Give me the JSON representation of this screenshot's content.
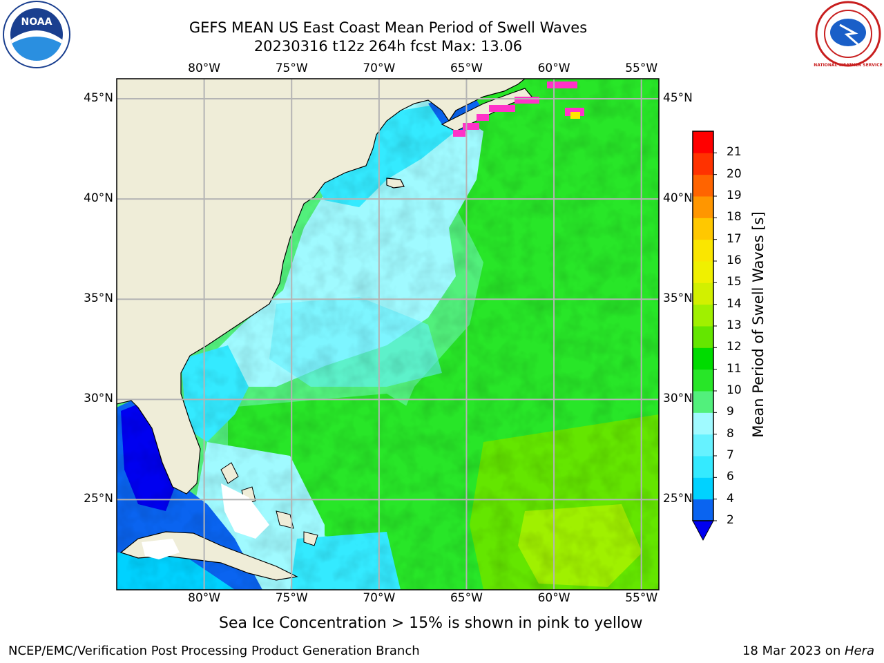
{
  "title": {
    "line1": "GEFS MEAN US East Coast Mean Period of Swell Waves",
    "line2": "20230316 t12z 264h fcst   Max: 13.06"
  },
  "map": {
    "lon_ticks": [
      "80°W",
      "75°W",
      "70°W",
      "65°W",
      "60°W",
      "55°W"
    ],
    "lat_ticks": [
      "45°N",
      "40°N",
      "35°N",
      "30°N",
      "25°N"
    ],
    "lon_values": [
      -80,
      -75,
      -70,
      -65,
      -60,
      -55
    ],
    "lat_values": [
      45,
      40,
      35,
      30,
      25
    ],
    "lon_range": [
      -85,
      -54
    ],
    "lat_range": [
      20.5,
      46
    ]
  },
  "colorbar": {
    "label": "Mean Period of Swell Waves [s]",
    "ticks": [
      "2",
      "4",
      "6",
      "7",
      "8",
      "9",
      "10",
      "11",
      "12",
      "13",
      "14",
      "15",
      "16",
      "17",
      "18",
      "19",
      "20",
      "21"
    ],
    "colors": [
      "#0a64f0",
      "#00d2ff",
      "#34eaff",
      "#66f2ff",
      "#a0faff",
      "#52f07c",
      "#28e628",
      "#00dc00",
      "#64e600",
      "#a0f000",
      "#d2f000",
      "#f0f000",
      "#fae600",
      "#ffc800",
      "#ff9600",
      "#ff6400",
      "#ff3200",
      "#ff0000"
    ],
    "under_color": "#0000f0"
  },
  "colors": {
    "land": "#efedd8",
    "coast": "#000000",
    "grid": "#b4b4b4",
    "ice_pink": "#ff32c8",
    "ice_yellow": "#ffe600"
  },
  "caption": "Sea Ice Concentration > 15% is shown in pink to yellow",
  "footer": {
    "left": "NCEP/EMC/Verification Post Processing Product Generation Branch",
    "right_date": "18 Mar 2023 on ",
    "right_host": "Hera"
  },
  "logos": {
    "left": "NOAA",
    "right": "NATIONAL WEATHER SERVICE"
  }
}
